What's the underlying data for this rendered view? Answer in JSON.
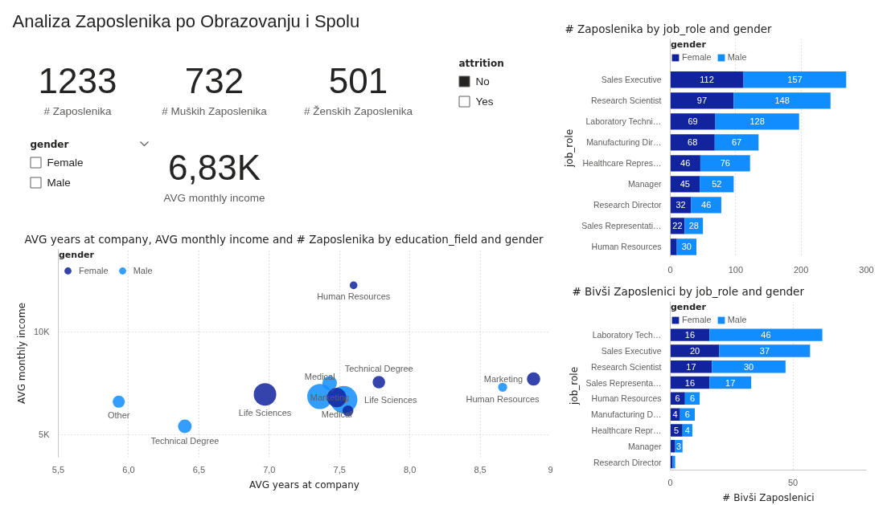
{
  "chart_data": [
    {
      "type": "other",
      "title": "Analiza Zaposlenika po Obrazovanju i Spolu",
      "categories": [
        "# Zaposlenika",
        "# Muških Zaposlenika",
        "# Ženskih Zaposlenika"
      ],
      "values": [
        1233,
        732,
        501
      ],
      "data_labels": true
    },
    {
      "type": "other",
      "title": "attrition",
      "categories": [
        "No",
        "Yes"
      ],
      "colors": [
        "#252423",
        "#ffffff"
      ]
    },
    {
      "type": "other",
      "title": "gender",
      "categories": [
        "Female",
        "Male"
      ],
      "colors": [
        "#ffffff",
        "#ffffff"
      ]
    },
    {
      "type": "other",
      "categories": [
        "AVG monthly income"
      ],
      "values": [
        6830
      ],
      "value_labels": [
        "6,83K"
      ]
    },
    {
      "type": "bubble",
      "title": "AVG years at company, AVG monthly income and # Zaposlenika by education_field and gender",
      "xlabel": "AVG years at company",
      "ylabel": "AVG monthly income",
      "legend_title": "gender",
      "legend": "top left",
      "grid": true,
      "series": [
        {
          "name": "Female",
          "color": "#12239e",
          "x": [
            6.97,
            7.48,
            8.88,
            7.78,
            7.6,
            7.56
          ],
          "values": [
            6950,
            6800,
            7700,
            7550,
            12250,
            6150
          ],
          "sizes": [
            0.68,
            0.5,
            0.24,
            0.21,
            0.08,
            0.16
          ],
          "value_labels": [
            "Life Sciences",
            "Medical",
            "Marketing",
            "Technical Degree",
            "Human Resources",
            null
          ]
        },
        {
          "name": "Male",
          "color": "#118dff",
          "x": [
            7.53,
            7.36,
            7.43,
            6.4,
            8.66,
            5.93
          ],
          "values": [
            6700,
            6850,
            7500,
            5400,
            7300,
            6600
          ],
          "sizes": [
            1,
            0.85,
            0.28,
            0.25,
            0.11,
            0.2
          ],
          "value_labels": [
            "Life Sciences",
            "Medical",
            "Marketing",
            "Technical Degree",
            "Human Resources",
            "Other"
          ]
        }
      ],
      "xlim": [
        5.5,
        9
      ],
      "xticks": [
        {
          "value": 5.5,
          "label": "5,5"
        },
        {
          "value": 6,
          "label": "6,0"
        },
        {
          "value": 6.5,
          "label": "6,5"
        },
        {
          "value": 7,
          "label": "7,0"
        },
        {
          "value": 7.5,
          "label": "7,5"
        },
        {
          "value": 8,
          "label": "8,0"
        },
        {
          "value": 8.5,
          "label": "8,5"
        },
        9
      ],
      "ylim": [
        3900,
        14000
      ],
      "yticks": [
        {
          "value": 5000,
          "label": "5K"
        },
        {
          "value": 10000,
          "label": "10K"
        }
      ]
    },
    {
      "type": "bar",
      "orientation": "horizontal",
      "stacked": true,
      "title": "# Zaposlenika by job_role and gender",
      "ylabel": "job_role",
      "legend_title": "gender",
      "legend": "top left",
      "grid": "x",
      "categories": [
        "Sales Executive",
        "Research Scientist",
        "Laboratory Techni…",
        "Manufacturing Dir…",
        "Healthcare Repres…",
        "Manager",
        "Research Director",
        "Sales Representati…",
        "Human Resources"
      ],
      "series": [
        {
          "name": "Female",
          "color": "#12239e",
          "values": [
            112,
            97,
            69,
            68,
            46,
            45,
            32,
            22,
            10
          ],
          "value_labels": [
            "112",
            "97",
            "69",
            "68",
            "46",
            "45",
            "32",
            "22",
            null
          ]
        },
        {
          "name": "Male",
          "color": "#118dff",
          "values": [
            157,
            148,
            128,
            67,
            76,
            52,
            46,
            28,
            30
          ],
          "value_labels": [
            "157",
            "148",
            "128",
            "67",
            "76",
            "52",
            "46",
            "28",
            "30"
          ]
        }
      ],
      "xlim": [
        0,
        300
      ],
      "xticks": [
        0,
        100,
        200,
        300
      ]
    },
    {
      "type": "bar",
      "orientation": "horizontal",
      "stacked": true,
      "title": "# Bivši Zaposlenici by job_role and gender",
      "ylabel": "job_role",
      "xlabel": "# Bivši Zaposlenici",
      "legend_title": "gender",
      "legend": "top left",
      "grid": "x",
      "categories": [
        "Laboratory Tech…",
        "Sales Executive",
        "Research Scientist",
        "Sales Representa…",
        "Human Resources",
        "Manufacturing D…",
        "Healthcare Repr…",
        "Manager",
        "Research Director"
      ],
      "series": [
        {
          "name": "Female",
          "color": "#12239e",
          "values": [
            16,
            20,
            17,
            16,
            6,
            4,
            5,
            2,
            1
          ],
          "value_labels": [
            "16",
            "20",
            "17",
            "16",
            "6",
            "4",
            "5",
            null,
            null
          ]
        },
        {
          "name": "Male",
          "color": "#118dff",
          "values": [
            46,
            37,
            30,
            17,
            6,
            6,
            4,
            3,
            1
          ],
          "value_labels": [
            "46",
            "37",
            "30",
            "17",
            "6",
            "6",
            "4",
            "3",
            null
          ]
        }
      ],
      "xlim": [
        0,
        80
      ],
      "xticks": [
        0,
        50
      ]
    }
  ]
}
